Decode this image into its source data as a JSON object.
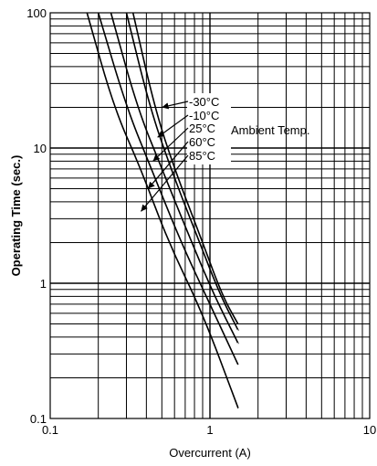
{
  "chart_data": {
    "type": "line",
    "title": "",
    "xlabel": "Overcurrent (A)",
    "ylabel": "Operating Time (sec.)",
    "x_scale": "log",
    "y_scale": "log",
    "xlim": [
      0.1,
      10
    ],
    "ylim": [
      0.1,
      100
    ],
    "x_ticks": [
      "0.1",
      "1",
      "10"
    ],
    "y_ticks": [
      "0.1",
      "1",
      "10",
      "100"
    ],
    "grid": true,
    "annotation_title": "Ambient Temp.",
    "series": [
      {
        "name": "-30°C",
        "points": [
          [
            0.33,
            100
          ],
          [
            0.45,
            20
          ],
          [
            0.6,
            7
          ],
          [
            0.9,
            2
          ],
          [
            1.2,
            0.8
          ],
          [
            1.5,
            0.5
          ]
        ]
      },
      {
        "name": "-10°C",
        "points": [
          [
            0.3,
            100
          ],
          [
            0.42,
            20
          ],
          [
            0.57,
            7
          ],
          [
            0.86,
            2
          ],
          [
            1.17,
            0.8
          ],
          [
            1.5,
            0.45
          ]
        ]
      },
      {
        "name": "25°C",
        "points": [
          [
            0.24,
            100
          ],
          [
            0.35,
            20
          ],
          [
            0.5,
            7
          ],
          [
            0.77,
            2
          ],
          [
            1.07,
            0.8
          ],
          [
            1.5,
            0.36
          ]
        ]
      },
      {
        "name": "60°C",
        "points": [
          [
            0.2,
            100
          ],
          [
            0.3,
            20
          ],
          [
            0.43,
            7
          ],
          [
            0.66,
            2
          ],
          [
            1.0,
            0.7
          ],
          [
            1.5,
            0.25
          ]
        ]
      },
      {
        "name": "85°C",
        "points": [
          [
            0.17,
            100
          ],
          [
            0.25,
            20
          ],
          [
            0.37,
            7
          ],
          [
            0.55,
            2
          ],
          [
            0.9,
            0.6
          ],
          [
            1.5,
            0.12
          ]
        ]
      }
    ]
  }
}
